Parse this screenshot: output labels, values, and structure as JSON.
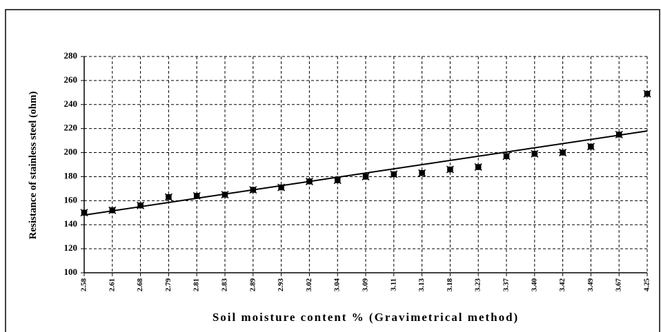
{
  "chart_data": {
    "type": "scatter",
    "x_label": "Soil moisture content % (Gravimetrical method)",
    "y_label": "Resistance of stainless steel (ohm)",
    "categories": [
      "2.58",
      "2.61",
      "2.68",
      "2.79",
      "2.81",
      "2.83",
      "2.89",
      "2.93",
      "3.02",
      "3.04",
      "3.09",
      "3.11",
      "3.13",
      "3.18",
      "3.23",
      "3.37",
      "3.40",
      "3.42",
      "3.49",
      "3.67",
      "4.25"
    ],
    "values": [
      150,
      152,
      156,
      163,
      164,
      165,
      169,
      171,
      176,
      177,
      180,
      182,
      183,
      186,
      188,
      197,
      199,
      200,
      205,
      215,
      249
    ],
    "color": "#000000",
    "trendline": {
      "start": 148,
      "end": 218
    },
    "ylim": [
      100,
      280
    ],
    "yticks": [
      100,
      120,
      140,
      160,
      180,
      200,
      220,
      240,
      260,
      280
    ],
    "grid": true
  }
}
